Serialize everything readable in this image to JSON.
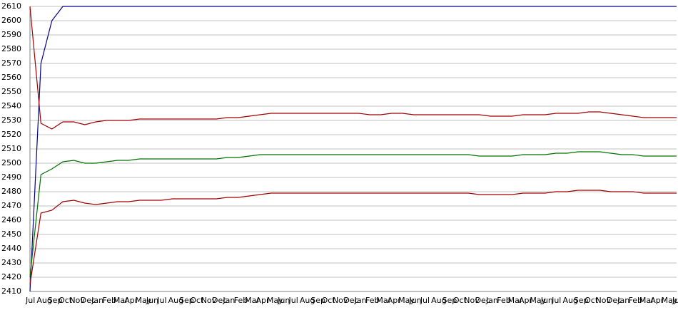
{
  "chart_data": {
    "type": "line",
    "categories": [
      "Jul",
      "Aug",
      "Sep",
      "Oct",
      "Nov",
      "Dec",
      "Jan",
      "Feb",
      "Mar",
      "Apr",
      "May",
      "Jun",
      "Jul",
      "Aug",
      "Sep",
      "Oct",
      "Nov",
      "Dec",
      "Jan",
      "Feb",
      "Mar",
      "Apr",
      "May",
      "Jun",
      "Jul",
      "Aug",
      "Sep",
      "Oct",
      "Nov",
      "Dec",
      "Jan",
      "Feb",
      "Mar",
      "Apr",
      "May",
      "Jun",
      "Jul",
      "Aug",
      "Sep",
      "Oct",
      "Nov",
      "Dec",
      "Jan",
      "Feb",
      "Mar",
      "Apr",
      "May",
      "Jun",
      "Jul",
      "Aug",
      "Sep",
      "Oct",
      "Nov",
      "Dec",
      "Jan",
      "Feb",
      "Mar",
      "Apr",
      "May",
      "Jun"
    ],
    "series": [
      {
        "color": "#00008b",
        "values": [
          2410,
          2570,
          2600,
          2610,
          2610,
          2610,
          2610,
          2610,
          2610,
          2610,
          2610,
          2610,
          2610,
          2610,
          2610,
          2610,
          2610,
          2610,
          2610,
          2610,
          2610,
          2610,
          2610,
          2610,
          2610,
          2610,
          2610,
          2610,
          2610,
          2610,
          2610,
          2610,
          2610,
          2610,
          2610,
          2610,
          2610,
          2610,
          2610,
          2610,
          2610,
          2610,
          2610,
          2610,
          2610,
          2610,
          2610,
          2610,
          2610,
          2610,
          2610,
          2610,
          2610,
          2610,
          2610,
          2610,
          2610,
          2610,
          2610,
          2610
        ]
      },
      {
        "color": "#a00000",
        "values": [
          2610,
          2528,
          2524,
          2529,
          2529,
          2527,
          2529,
          2530,
          2530,
          2530,
          2531,
          2531,
          2531,
          2531,
          2531,
          2531,
          2531,
          2531,
          2532,
          2532,
          2533,
          2534,
          2535,
          2535,
          2535,
          2535,
          2535,
          2535,
          2535,
          2535,
          2535,
          2534,
          2534,
          2535,
          2535,
          2534,
          2534,
          2534,
          2534,
          2534,
          2534,
          2534,
          2533,
          2533,
          2533,
          2534,
          2534,
          2534,
          2535,
          2535,
          2535,
          2536,
          2536,
          2535,
          2534,
          2533,
          2532,
          2532,
          2532,
          2532
        ]
      },
      {
        "color": "#007000",
        "values": [
          2420,
          2492,
          2496,
          2501,
          2502,
          2500,
          2500,
          2501,
          2502,
          2502,
          2503,
          2503,
          2503,
          2503,
          2503,
          2503,
          2503,
          2503,
          2504,
          2504,
          2505,
          2506,
          2506,
          2506,
          2506,
          2506,
          2506,
          2506,
          2506,
          2506,
          2506,
          2506,
          2506,
          2506,
          2506,
          2506,
          2506,
          2506,
          2506,
          2506,
          2506,
          2505,
          2505,
          2505,
          2505,
          2506,
          2506,
          2506,
          2507,
          2507,
          2508,
          2508,
          2508,
          2507,
          2506,
          2506,
          2505,
          2505,
          2505,
          2505
        ]
      },
      {
        "color": "#a00000",
        "values": [
          2415,
          2465,
          2467,
          2473,
          2474,
          2472,
          2471,
          2472,
          2473,
          2473,
          2474,
          2474,
          2474,
          2475,
          2475,
          2475,
          2475,
          2475,
          2476,
          2476,
          2477,
          2478,
          2479,
          2479,
          2479,
          2479,
          2479,
          2479,
          2479,
          2479,
          2479,
          2479,
          2479,
          2479,
          2479,
          2479,
          2479,
          2479,
          2479,
          2479,
          2479,
          2478,
          2478,
          2478,
          2478,
          2479,
          2479,
          2479,
          2480,
          2480,
          2481,
          2481,
          2481,
          2480,
          2480,
          2480,
          2479,
          2479,
          2479,
          2479
        ]
      }
    ],
    "ylim": [
      2410,
      2610
    ],
    "yticks": [
      2410,
      2420,
      2430,
      2440,
      2450,
      2460,
      2470,
      2480,
      2490,
      2500,
      2510,
      2520,
      2530,
      2540,
      2550,
      2560,
      2570,
      2580,
      2590,
      2600,
      2610
    ],
    "grid": true
  }
}
